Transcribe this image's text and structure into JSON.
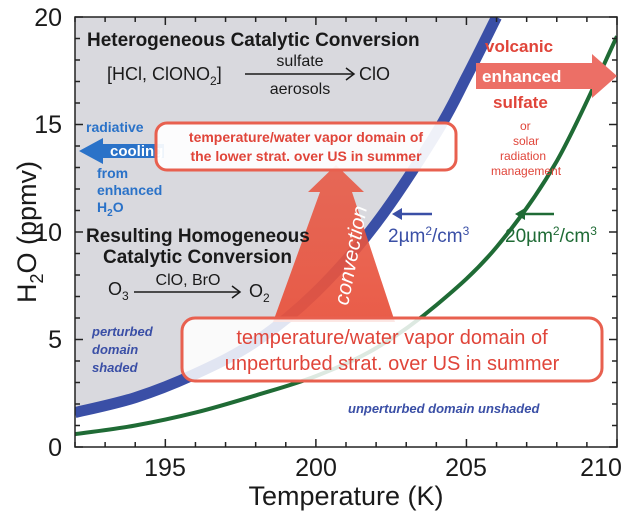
{
  "chart_data": {
    "type": "line",
    "xlabel": "Temperature (K)",
    "ylabel_parts": [
      "H",
      "2",
      "O (ppmv)"
    ],
    "xlim": [
      192,
      210
    ],
    "ylim": [
      0,
      20
    ],
    "x_ticks": [
      "195",
      "200",
      "205",
      "210"
    ],
    "y_ticks": [
      "0",
      "5",
      "10",
      "15",
      "20"
    ],
    "grid": false,
    "series": [
      {
        "name": "2µm²/cm³",
        "color": "#3a4fa6",
        "points": [
          [
            192,
            1.6
          ],
          [
            194,
            2.3
          ],
          [
            196,
            3.4
          ],
          [
            198,
            4.9
          ],
          [
            200,
            7.2
          ],
          [
            202,
            10.4
          ],
          [
            204,
            14.6
          ],
          [
            205,
            17.2
          ],
          [
            206,
            20.0
          ]
        ]
      },
      {
        "name": "20µm²/cm³",
        "color": "#1f6b35",
        "points": [
          [
            192,
            0.6
          ],
          [
            194,
            1.0
          ],
          [
            196,
            1.6
          ],
          [
            198,
            2.4
          ],
          [
            200,
            3.3
          ],
          [
            202,
            4.6
          ],
          [
            204,
            6.6
          ],
          [
            206,
            9.3
          ],
          [
            208,
            13.3
          ],
          [
            210,
            19.1
          ]
        ]
      }
    ],
    "series_labels": {
      "blue": [
        "2µm",
        "2",
        "/cm",
        "3"
      ],
      "green": [
        "20µm",
        "2",
        "/cm",
        "3"
      ]
    },
    "annotations": {
      "het_title": "Heterogeneous Catalytic Conversion",
      "het_reactant": "[HCl, ClONO",
      "het_reactant_sub": "2",
      "het_reactant_end": "]",
      "het_above": "sulfate",
      "het_below": "aerosols",
      "het_product": "ClO",
      "hom_title_1": "Resulting Homogeneous",
      "hom_title_2": "Catalytic Conversion",
      "hom_reactant": "O",
      "hom_reactant_sub": "3",
      "hom_above": "ClO, BrO",
      "hom_product": "O",
      "hom_product_sub": "2",
      "radiative": [
        "radiative",
        "cooling",
        "from",
        "enhanced",
        "H"
      ],
      "radiative_sub": "2",
      "radiative_end": "O",
      "volcanic": [
        "volcanic",
        "enhanced",
        "sulfate",
        "or",
        "solar",
        "radiation",
        "management"
      ],
      "upper_box": [
        "temperature/water vapor domain of",
        "the lower strat. over US in summer"
      ],
      "lower_box": [
        "temperature/water vapor domain of",
        "unperturbed strat. over US in summer"
      ],
      "convection": "convection",
      "perturbed": [
        "perturbed",
        "domain",
        "shaded"
      ],
      "unperturbed": "unperturbed domain unshaded"
    }
  }
}
